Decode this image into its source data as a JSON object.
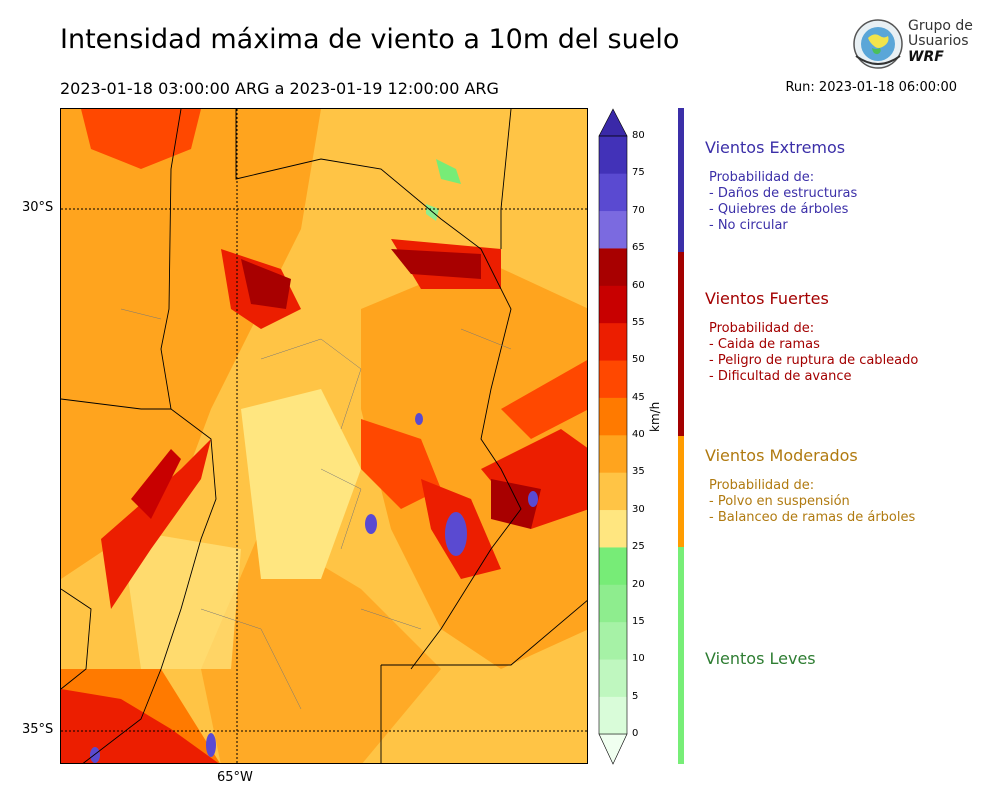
{
  "title": "Intensidad máxima de viento a 10m del suelo",
  "period": "2023-01-18 03:00:00 ARG  a  2023-01-19 12:00:00 ARG",
  "run": "Run: 2023-01-18 06:00:00",
  "logo": {
    "line1": "Grupo de",
    "line2": "Usuarios",
    "line3": "WRF"
  },
  "map": {
    "lat_ticks": [
      "30°S",
      "35°S"
    ],
    "lon_ticks": [
      "65°W"
    ],
    "gridline_color": "#000000"
  },
  "colorbar": {
    "unit": "km/h",
    "levels": [
      "0",
      "5",
      "10",
      "15",
      "20",
      "25",
      "30",
      "35",
      "40",
      "45",
      "50",
      "55",
      "60",
      "65",
      "70",
      "75",
      "80"
    ],
    "colors": [
      "#f0fff0",
      "#d9fcd9",
      "#bff7bf",
      "#a6f2a6",
      "#8eed8e",
      "#77ec77",
      "#ffe680",
      "#ffc445",
      "#ffa41e",
      "#ff7a00",
      "#ff4800",
      "#ec1e00",
      "#c80000",
      "#a80000",
      "#7b6ae0",
      "#5a4ad1",
      "#4232b8",
      "#3a29a8"
    ]
  },
  "categories": [
    {
      "title": "Vientos Extremos",
      "color": "#3b2fa8",
      "lines": [
        "Probabilidad de:",
        "- Daños de estructuras",
        "- Quiebres de árboles",
        "- No circular"
      ]
    },
    {
      "title": "Vientos Fuertes",
      "color": "#a30000",
      "lines": [
        "Probabilidad de:",
        "- Caida de ramas",
        "- Peligro de ruptura de cableado",
        "- Dificultad de avance"
      ]
    },
    {
      "title": "Vientos Moderados",
      "color": "#b07a10",
      "lines": [
        "Probabilidad de:",
        "- Polvo en suspensión",
        "- Balanceo de ramas de árboles"
      ]
    },
    {
      "title": "Vientos Leves",
      "color": "#2e7d32",
      "lines": []
    }
  ],
  "category_bar_colors": [
    "#3b2fa8",
    "#a30000",
    "#ff9c00",
    "#77ee77"
  ]
}
